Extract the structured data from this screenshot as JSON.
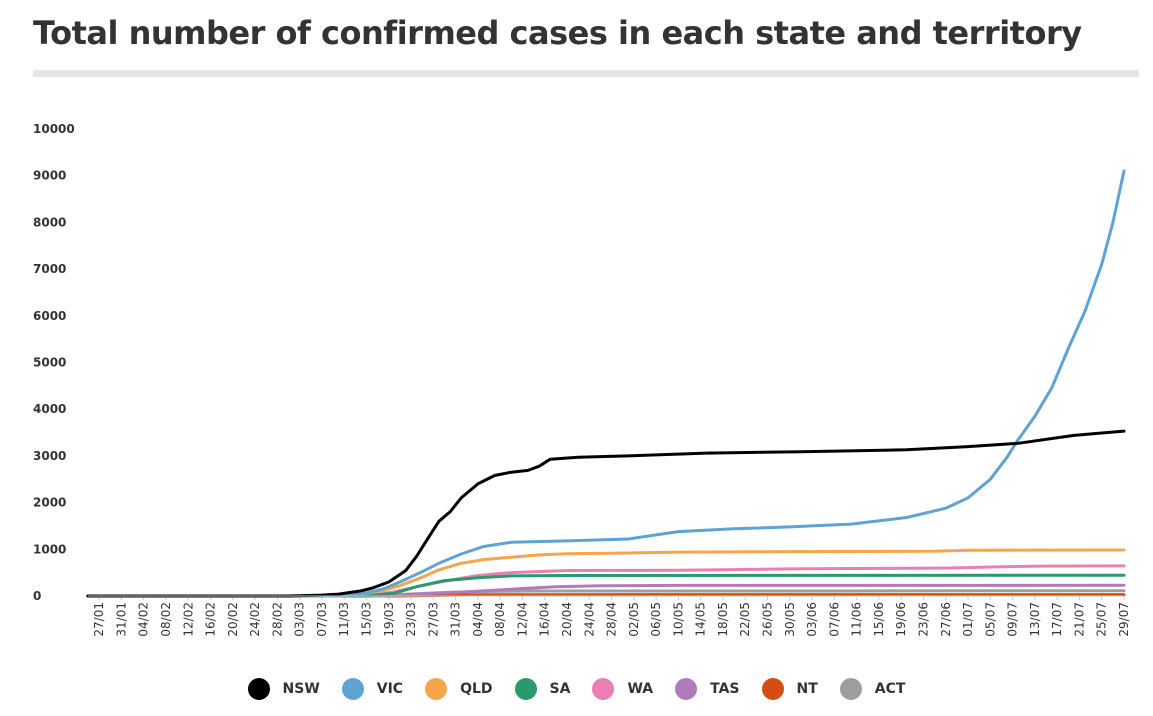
{
  "chart_data": {
    "type": "line",
    "title": "Total number of confirmed cases in each state and territory",
    "xlabel": "",
    "ylabel": "",
    "ylim": [
      0,
      10000
    ],
    "y_ticks": [
      0,
      1000,
      2000,
      3000,
      4000,
      5000,
      6000,
      7000,
      8000,
      9000,
      10000
    ],
    "x_tick_labels": [
      "27/01",
      "31/01",
      "04/02",
      "08/02",
      "12/02",
      "16/02",
      "20/02",
      "24/02",
      "28/02",
      "03/03",
      "07/03",
      "11/03",
      "15/03",
      "19/03",
      "23/03",
      "27/03",
      "31/03",
      "04/04",
      "08/04",
      "12/04",
      "16/04",
      "20/04",
      "24/04",
      "28/04",
      "02/05",
      "06/05",
      "10/05",
      "14/05",
      "18/05",
      "22/05",
      "26/05",
      "30/05",
      "03/06",
      "07/06",
      "11/06",
      "15/06",
      "19/06",
      "23/06",
      "27/06",
      "01/07",
      "05/07",
      "09/07",
      "13/07",
      "17/07",
      "21/07",
      "25/07",
      "29/07"
    ],
    "x_start": "2020-01-25",
    "x_end": "2020-07-29",
    "grid": false,
    "legend_position": "bottom",
    "series": [
      {
        "name": "NSW",
        "color": "#000000",
        "points": [
          [
            "2020-01-25",
            0
          ],
          [
            "2020-03-01",
            0
          ],
          [
            "2020-03-07",
            20
          ],
          [
            "2020-03-10",
            40
          ],
          [
            "2020-03-14",
            110
          ],
          [
            "2020-03-16",
            170
          ],
          [
            "2020-03-19",
            300
          ],
          [
            "2020-03-22",
            540
          ],
          [
            "2020-03-24",
            850
          ],
          [
            "2020-03-26",
            1230
          ],
          [
            "2020-03-28",
            1600
          ],
          [
            "2020-03-30",
            1800
          ],
          [
            "2020-04-01",
            2100
          ],
          [
            "2020-04-04",
            2400
          ],
          [
            "2020-04-07",
            2580
          ],
          [
            "2020-04-10",
            2650
          ],
          [
            "2020-04-13",
            2690
          ],
          [
            "2020-04-15",
            2780
          ],
          [
            "2020-04-17",
            2930
          ],
          [
            "2020-04-22",
            2970
          ],
          [
            "2020-05-01",
            3000
          ],
          [
            "2020-05-15",
            3060
          ],
          [
            "2020-06-01",
            3090
          ],
          [
            "2020-06-20",
            3130
          ],
          [
            "2020-07-01",
            3200
          ],
          [
            "2020-07-10",
            3270
          ],
          [
            "2020-07-20",
            3440
          ],
          [
            "2020-07-29",
            3530
          ]
        ]
      },
      {
        "name": "VIC",
        "color": "#5ea3d4",
        "points": [
          [
            "2020-01-25",
            0
          ],
          [
            "2020-03-10",
            0
          ],
          [
            "2020-03-14",
            40
          ],
          [
            "2020-03-18",
            150
          ],
          [
            "2020-03-21",
            300
          ],
          [
            "2020-03-25",
            520
          ],
          [
            "2020-03-28",
            700
          ],
          [
            "2020-04-01",
            900
          ],
          [
            "2020-04-05",
            1060
          ],
          [
            "2020-04-10",
            1150
          ],
          [
            "2020-04-20",
            1180
          ],
          [
            "2020-05-01",
            1220
          ],
          [
            "2020-05-10",
            1380
          ],
          [
            "2020-05-20",
            1440
          ],
          [
            "2020-05-30",
            1480
          ],
          [
            "2020-06-10",
            1540
          ],
          [
            "2020-06-20",
            1680
          ],
          [
            "2020-06-27",
            1880
          ],
          [
            "2020-07-01",
            2100
          ],
          [
            "2020-07-05",
            2500
          ],
          [
            "2020-07-08",
            2970
          ],
          [
            "2020-07-10",
            3350
          ],
          [
            "2020-07-13",
            3850
          ],
          [
            "2020-07-16",
            4450
          ],
          [
            "2020-07-19",
            5300
          ],
          [
            "2020-07-22",
            6100
          ],
          [
            "2020-07-25",
            7100
          ],
          [
            "2020-07-27",
            8000
          ],
          [
            "2020-07-29",
            9100
          ]
        ]
      },
      {
        "name": "QLD",
        "color": "#f5a54a",
        "points": [
          [
            "2020-01-25",
            0
          ],
          [
            "2020-03-10",
            0
          ],
          [
            "2020-03-14",
            40
          ],
          [
            "2020-03-18",
            120
          ],
          [
            "2020-03-21",
            220
          ],
          [
            "2020-03-25",
            400
          ],
          [
            "2020-03-28",
            560
          ],
          [
            "2020-04-01",
            700
          ],
          [
            "2020-04-05",
            780
          ],
          [
            "2020-04-10",
            830
          ],
          [
            "2020-04-15",
            880
          ],
          [
            "2020-04-20",
            905
          ],
          [
            "2020-05-01",
            920
          ],
          [
            "2020-05-10",
            940
          ],
          [
            "2020-06-01",
            950
          ],
          [
            "2020-06-25",
            960
          ],
          [
            "2020-07-01",
            980
          ],
          [
            "2020-07-29",
            985
          ]
        ]
      },
      {
        "name": "SA",
        "color": "#2a9a6c",
        "points": [
          [
            "2020-01-25",
            0
          ],
          [
            "2020-03-15",
            0
          ],
          [
            "2020-03-20",
            60
          ],
          [
            "2020-03-24",
            200
          ],
          [
            "2020-03-29",
            330
          ],
          [
            "2020-04-04",
            390
          ],
          [
            "2020-04-10",
            430
          ],
          [
            "2020-04-20",
            438
          ],
          [
            "2020-07-29",
            445
          ]
        ]
      },
      {
        "name": "WA",
        "color": "#ea7fb4",
        "points": [
          [
            "2020-01-25",
            0
          ],
          [
            "2020-03-15",
            0
          ],
          [
            "2020-03-20",
            90
          ],
          [
            "2020-03-24",
            200
          ],
          [
            "2020-03-29",
            320
          ],
          [
            "2020-04-04",
            440
          ],
          [
            "2020-04-10",
            500
          ],
          [
            "2020-04-20",
            545
          ],
          [
            "2020-05-10",
            552
          ],
          [
            "2020-05-30",
            580
          ],
          [
            "2020-06-15",
            590
          ],
          [
            "2020-06-28",
            600
          ],
          [
            "2020-07-05",
            620
          ],
          [
            "2020-07-14",
            640
          ],
          [
            "2020-07-29",
            645
          ]
        ]
      },
      {
        "name": "TAS",
        "color": "#b07bbd",
        "points": [
          [
            "2020-01-25",
            0
          ],
          [
            "2020-03-18",
            0
          ],
          [
            "2020-03-24",
            40
          ],
          [
            "2020-03-30",
            70
          ],
          [
            "2020-04-05",
            110
          ],
          [
            "2020-04-12",
            160
          ],
          [
            "2020-04-18",
            200
          ],
          [
            "2020-04-26",
            220
          ],
          [
            "2020-05-10",
            228
          ],
          [
            "2020-07-29",
            229
          ]
        ]
      },
      {
        "name": "NT",
        "color": "#d44d12",
        "points": [
          [
            "2020-01-25",
            0
          ],
          [
            "2020-03-20",
            0
          ],
          [
            "2020-03-26",
            10
          ],
          [
            "2020-04-05",
            25
          ],
          [
            "2020-04-20",
            28
          ],
          [
            "2020-05-05",
            30
          ],
          [
            "2020-07-29",
            31
          ]
        ]
      },
      {
        "name": "ACT",
        "color": "#9e9e9e",
        "points": [
          [
            "2020-01-25",
            0
          ],
          [
            "2020-03-12",
            0
          ],
          [
            "2020-03-18",
            20
          ],
          [
            "2020-03-24",
            50
          ],
          [
            "2020-03-30",
            80
          ],
          [
            "2020-04-05",
            96
          ],
          [
            "2020-04-15",
            106
          ],
          [
            "2020-05-01",
            107
          ],
          [
            "2020-06-10",
            108
          ],
          [
            "2020-07-05",
            113
          ],
          [
            "2020-07-29",
            114
          ]
        ]
      }
    ]
  }
}
